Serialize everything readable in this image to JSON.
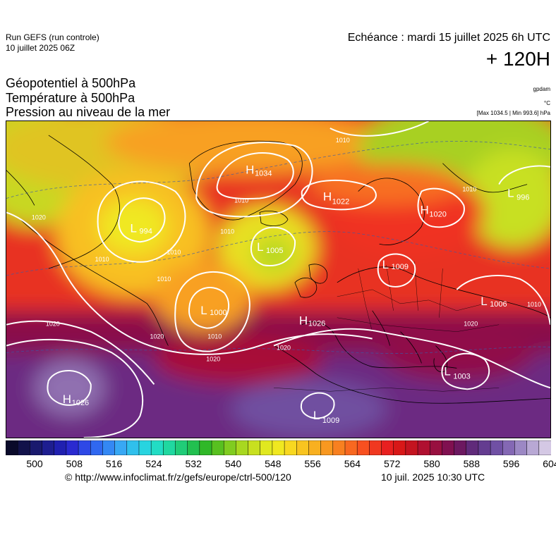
{
  "header": {
    "run_name": "Run GEFS (run controle)",
    "run_date": "10 juillet 2025 06Z",
    "valid_time": "Echéance : mardi 15 juillet 2025 6h UTC",
    "lead_time": "+ 120H"
  },
  "titles": {
    "line1": "Géopotentiel à 500hPa",
    "line2": "Température à 500hPa",
    "line3": "Pression au niveau de la mer"
  },
  "units": {
    "geopotential": "gpdam",
    "temperature": "°C",
    "minmax": "[Max 1034.5 | Min 993.6] hPa"
  },
  "colorbar": {
    "colors": [
      "#0a0a2a",
      "#12124a",
      "#1a1a6e",
      "#1e1e90",
      "#2020b0",
      "#2a2ad0",
      "#2e48e6",
      "#3068f0",
      "#3488f4",
      "#38a8f4",
      "#30c0ec",
      "#28d4e0",
      "#22dcc4",
      "#20d8a0",
      "#20cc78",
      "#22c050",
      "#30b828",
      "#58c020",
      "#80cc20",
      "#a8d820",
      "#c8e020",
      "#e0e820",
      "#f0e820",
      "#f8d820",
      "#f8c420",
      "#f8b020",
      "#f89820",
      "#f88020",
      "#f86820",
      "#f85020",
      "#f03820",
      "#e82020",
      "#d81818",
      "#c41420",
      "#b01030",
      "#981040",
      "#801050",
      "#6c1860",
      "#602a7a",
      "#643c90",
      "#7050a4",
      "#8468b4",
      "#9c88c4",
      "#b8a8d4",
      "#d4c8e4"
    ],
    "tick_labels": [
      "500",
      "508",
      "516",
      "524",
      "532",
      "540",
      "548",
      "556",
      "564",
      "572",
      "580",
      "588",
      "596",
      "604"
    ]
  },
  "pressure_centers": [
    {
      "type": "H",
      "value": "1034"
    },
    {
      "type": "H",
      "value": "1022"
    },
    {
      "type": "H",
      "value": "1020"
    },
    {
      "type": "L",
      "value": "996"
    },
    {
      "type": "L",
      "value": "994"
    },
    {
      "type": "L",
      "value": "1005"
    },
    {
      "type": "L",
      "value": "1009"
    },
    {
      "type": "L",
      "value": "1006"
    },
    {
      "type": "L",
      "value": "1000"
    },
    {
      "type": "H",
      "value": "1026"
    },
    {
      "type": "H",
      "value": "1026"
    },
    {
      "type": "L",
      "value": "1009"
    },
    {
      "type": "L",
      "value": "1003"
    }
  ],
  "isobar_labels": [
    "1010",
    "1020",
    "1010",
    "1010",
    "1010",
    "1010",
    "1020",
    "1010",
    "1020",
    "1020",
    "1020",
    "1010",
    "1010",
    "1020",
    "1010"
  ],
  "footer": {
    "source_url": "© http://www.infoclimat.fr/z/gefs/europe/ctrl-500/120",
    "issue_time": "10 juil. 2025 10:30 UTC"
  }
}
